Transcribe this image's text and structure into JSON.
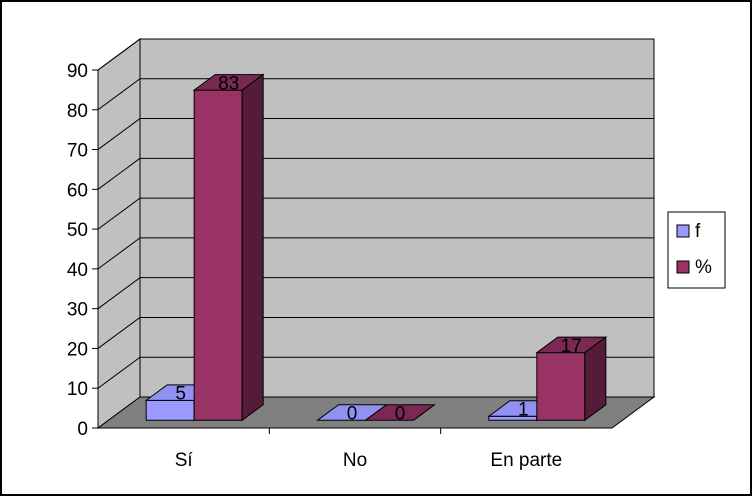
{
  "chart_data": {
    "type": "bar",
    "categories": [
      "Sí",
      "No",
      "En parte"
    ],
    "series": [
      {
        "name": "f",
        "values": [
          5,
          0,
          1
        ],
        "color": "#9999ff"
      },
      {
        "name": "%",
        "values": [
          83,
          0,
          17
        ],
        "color": "#993366"
      }
    ],
    "ylim": [
      0,
      90
    ],
    "y_ticks": [
      "0",
      "10",
      "20",
      "30",
      "40",
      "50",
      "60",
      "70",
      "80",
      "90"
    ],
    "data_labels": [
      [
        "5",
        "0",
        "1"
      ],
      [
        "83",
        "0",
        "17"
      ]
    ],
    "grid": true,
    "legend_position": "right",
    "wall_color": "#c0c0c0",
    "floor_color": "#808080"
  }
}
